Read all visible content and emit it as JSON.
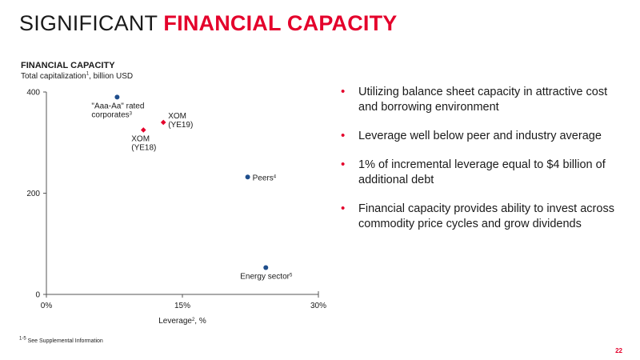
{
  "header": {
    "title_light": "SIGNIFICANT ",
    "title_accent": "FINANCIAL CAPACITY"
  },
  "chart_data": {
    "type": "scatter",
    "title": "FINANCIAL CAPACITY",
    "subtitle": "Total capitalization",
    "subtitle_sup": "1",
    "subtitle_unit": ", billion USD",
    "xlabel": "Leverage",
    "xlabel_sup": "2",
    "xlabel_unit": ", %",
    "xlim": [
      0,
      30
    ],
    "ylim": [
      0,
      400
    ],
    "x_ticks": [
      0,
      15,
      30
    ],
    "x_tick_labels": [
      "0%",
      "15%",
      "30%"
    ],
    "y_ticks": [
      0,
      200,
      400
    ],
    "y_tick_labels": [
      "0",
      "200",
      "400"
    ],
    "grid": false,
    "points": [
      {
        "id": "aaa",
        "x": 7.8,
        "y": 390,
        "label_lines": [
          "\"Aaa-Aa\" rated",
          "corporates"
        ],
        "sup": "3",
        "marker": "circle",
        "color": "#1f4e8c"
      },
      {
        "id": "xom-ye19",
        "x": 12.9,
        "y": 340,
        "label_lines": [
          "XOM",
          "(YE19)"
        ],
        "sup": "",
        "marker": "diamond",
        "color": "#e4002b"
      },
      {
        "id": "xom-ye18",
        "x": 10.7,
        "y": 325,
        "label_lines": [
          "XOM",
          "(YE18)"
        ],
        "sup": "",
        "marker": "diamond",
        "color": "#e4002b"
      },
      {
        "id": "peers",
        "x": 22.2,
        "y": 232,
        "label_lines": [
          "Peers"
        ],
        "sup": "4",
        "marker": "circle",
        "color": "#1f4e8c"
      },
      {
        "id": "energy",
        "x": 24.2,
        "y": 53,
        "label_lines": [
          "Energy sector"
        ],
        "sup": "5",
        "marker": "circle",
        "color": "#1f4e8c"
      }
    ]
  },
  "bullets": [
    "Utilizing balance sheet capacity in attractive cost and borrowing environment",
    "Leverage well below peer and industry average",
    "1% of incremental leverage equal to $4 billion of additional debt",
    "Financial capacity provides ability to invest across commodity price cycles and grow dividends"
  ],
  "bullet_glyph": "•",
  "footnote": {
    "sup": "1-5",
    "text": " See Supplemental Information"
  },
  "page_number": "22"
}
